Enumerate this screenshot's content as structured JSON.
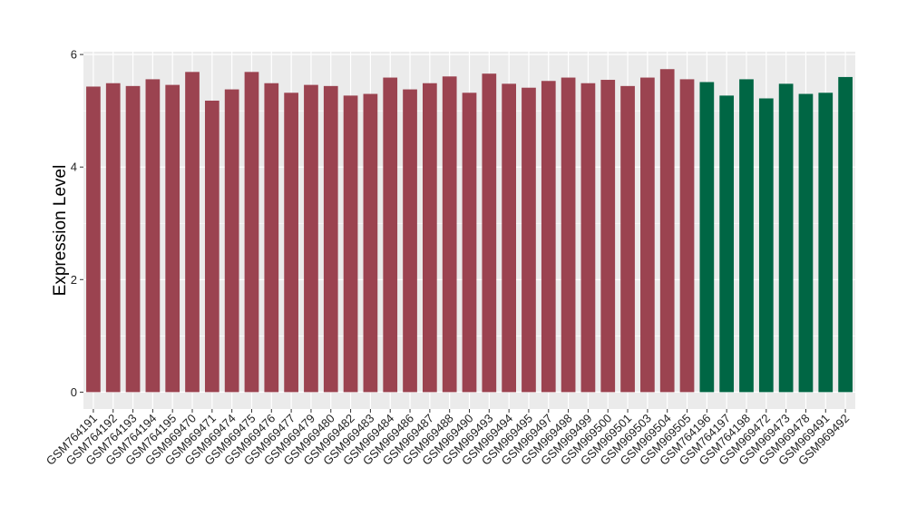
{
  "chart_data": {
    "type": "bar",
    "title": "",
    "xlabel": "",
    "ylabel": "Expression Level",
    "ylim": [
      -0.3,
      6.05
    ],
    "yticks": [
      0,
      2,
      4,
      6
    ],
    "grid": true,
    "legend": "none",
    "colors": {
      "group_a": "#9b4350",
      "group_b": "#006644",
      "panel_bg": "#ebebeb",
      "grid": "#ffffff"
    },
    "categories": [
      "GSM764191",
      "GSM764192",
      "GSM764193",
      "GSM764194",
      "GSM764195",
      "GSM969470",
      "GSM969471",
      "GSM969474",
      "GSM969475",
      "GSM969476",
      "GSM969477",
      "GSM969479",
      "GSM969480",
      "GSM969482",
      "GSM969483",
      "GSM969484",
      "GSM969486",
      "GSM969487",
      "GSM969488",
      "GSM969490",
      "GSM969493",
      "GSM969494",
      "GSM969495",
      "GSM969497",
      "GSM969498",
      "GSM969499",
      "GSM969500",
      "GSM969501",
      "GSM969503",
      "GSM969504",
      "GSM969505",
      "GSM764196",
      "GSM764197",
      "GSM764198",
      "GSM969472",
      "GSM969473",
      "GSM969478",
      "GSM969491",
      "GSM969492"
    ],
    "values": [
      5.43,
      5.49,
      5.44,
      5.56,
      5.46,
      5.69,
      5.18,
      5.38,
      5.69,
      5.49,
      5.32,
      5.46,
      5.44,
      5.27,
      5.3,
      5.59,
      5.38,
      5.49,
      5.61,
      5.32,
      5.66,
      5.48,
      5.41,
      5.53,
      5.59,
      5.49,
      5.55,
      5.44,
      5.59,
      5.74,
      5.56,
      5.51,
      5.27,
      5.56,
      5.22,
      5.48,
      5.3,
      5.32,
      5.6
    ],
    "groups": [
      "a",
      "a",
      "a",
      "a",
      "a",
      "a",
      "a",
      "a",
      "a",
      "a",
      "a",
      "a",
      "a",
      "a",
      "a",
      "a",
      "a",
      "a",
      "a",
      "a",
      "a",
      "a",
      "a",
      "a",
      "a",
      "a",
      "a",
      "a",
      "a",
      "a",
      "a",
      "b",
      "b",
      "b",
      "b",
      "b",
      "b",
      "b",
      "b"
    ]
  }
}
